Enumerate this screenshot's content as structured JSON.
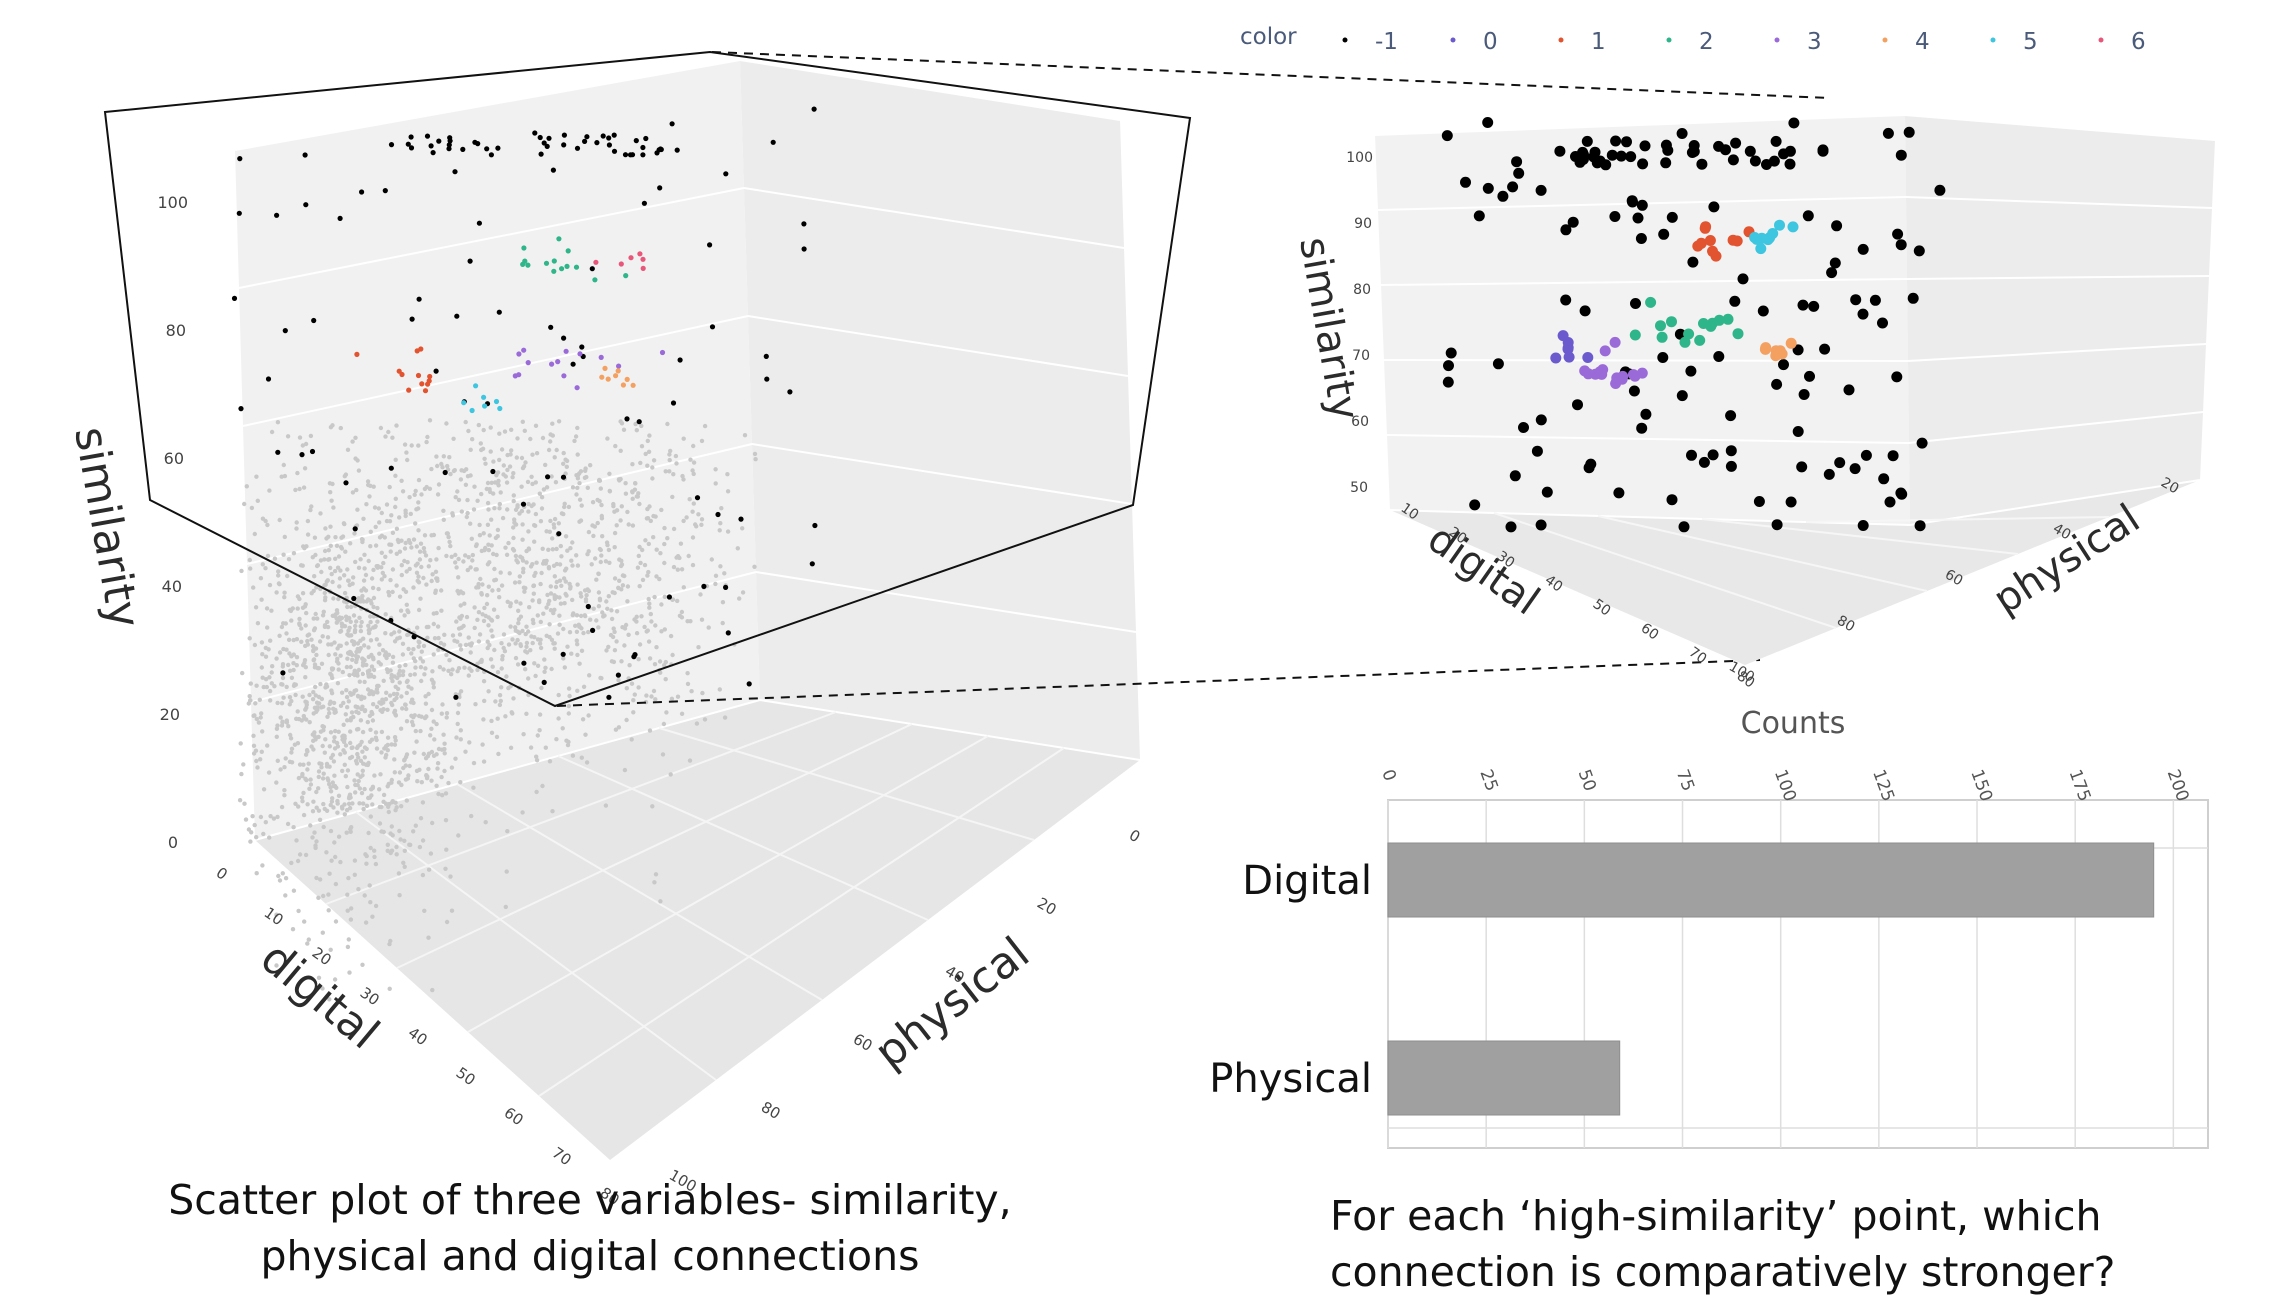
{
  "legend": {
    "title": "color",
    "items": [
      {
        "label": "-1",
        "color": "#000000"
      },
      {
        "label": "0",
        "color": "#6a5acd"
      },
      {
        "label": "1",
        "color": "#e2532f"
      },
      {
        "label": "2",
        "color": "#2fb58a"
      },
      {
        "label": "3",
        "color": "#9b6ad9"
      },
      {
        "label": "4",
        "color": "#f3a061"
      },
      {
        "label": "5",
        "color": "#3ec6e0"
      },
      {
        "label": "6",
        "color": "#e8577a"
      }
    ]
  },
  "chart_data": [
    {
      "type": "scatter",
      "dimensions": "3d",
      "axes": {
        "similarity": {
          "label": "similarity",
          "ticks": [
            "0",
            "20",
            "40",
            "60",
            "80",
            "100"
          ],
          "range": [
            0,
            100
          ]
        },
        "digital": {
          "label": "digital",
          "ticks": [
            "0",
            "10",
            "20",
            "30",
            "40",
            "50",
            "60",
            "70",
            "80"
          ],
          "range": [
            0,
            80
          ]
        },
        "physical": {
          "label": "physical",
          "ticks": [
            "0",
            "20",
            "40",
            "60",
            "80",
            "100"
          ],
          "range": [
            0,
            100
          ]
        }
      },
      "series": [
        {
          "color": "#c8c8c8",
          "description_count": 600
        },
        {
          "color": "#000000"
        },
        {
          "color": "#2fb58a"
        },
        {
          "color": "#e2532f"
        },
        {
          "color": "#9b6ad9"
        },
        {
          "color": "#3ec6e0"
        },
        {
          "color": "#f3a061"
        },
        {
          "color": "#e8577a"
        }
      ]
    },
    {
      "type": "scatter",
      "dimensions": "3d",
      "axes": {
        "similarity": {
          "label": "similarity",
          "ticks": [
            "50",
            "60",
            "70",
            "80",
            "90",
            "100"
          ],
          "range": [
            50,
            100
          ]
        },
        "digital": {
          "label": "digital",
          "ticks": [
            "10",
            "20",
            "30",
            "40",
            "50",
            "60",
            "70",
            "80"
          ],
          "range": [
            10,
            80
          ]
        },
        "physical": {
          "label": "physical",
          "ticks": [
            "20",
            "40",
            "60",
            "80",
            "100"
          ],
          "range": [
            20,
            100
          ]
        }
      }
    },
    {
      "type": "bar",
      "orientation": "horizontal",
      "title": "Counts",
      "categories": [
        "Digital",
        "Physical"
      ],
      "values": [
        195,
        59
      ],
      "xlim": [
        0,
        205
      ],
      "xticks": [
        "0",
        "25",
        "50",
        "75",
        "100",
        "125",
        "150",
        "175",
        "200"
      ],
      "bar_color": "#a0a0a0"
    }
  ],
  "captions": {
    "left": "Scatter plot of three variables- similarity, physical and digital connections",
    "right": "For each ‘high-similarity’ point, which connection is comparatively stronger?"
  }
}
